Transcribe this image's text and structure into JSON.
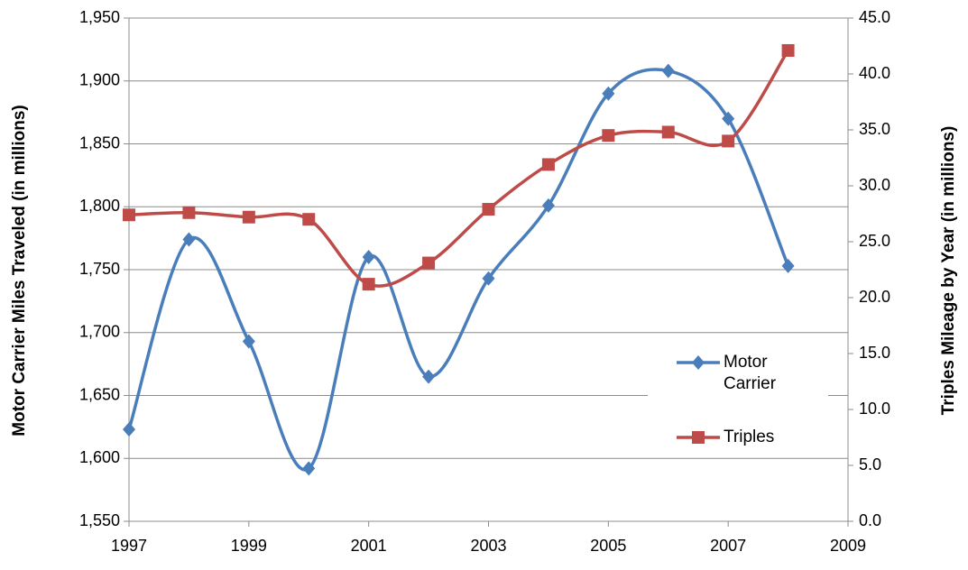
{
  "chart_data": {
    "type": "line",
    "y_label": "Motor Carrier Miles Traveled (in millions)",
    "y2_label": "Triples Mileage by Year (in millions)",
    "x": [
      1997,
      1998,
      1999,
      2000,
      2001,
      2002,
      2003,
      2004,
      2005,
      2006,
      2007,
      2008
    ],
    "xlim": [
      1997,
      2009
    ],
    "xticks": [
      1997,
      1999,
      2001,
      2003,
      2005,
      2007,
      2009
    ],
    "ylim": [
      1550,
      1950
    ],
    "yticks": [
      {
        "value": 1550,
        "label": "1,550"
      },
      {
        "value": 1600,
        "label": "1,600"
      },
      {
        "value": 1650,
        "label": "1,650"
      },
      {
        "value": 1700,
        "label": "1,700"
      },
      {
        "value": 1750,
        "label": "1,750"
      },
      {
        "value": 1800,
        "label": "1,800"
      },
      {
        "value": 1850,
        "label": "1,850"
      },
      {
        "value": 1900,
        "label": "1,900"
      },
      {
        "value": 1950,
        "label": "1,950"
      }
    ],
    "y2lim": [
      0,
      45
    ],
    "y2ticks": [
      {
        "value": 0,
        "label": "0.0"
      },
      {
        "value": 5,
        "label": "5.0"
      },
      {
        "value": 10,
        "label": "10.0"
      },
      {
        "value": 15,
        "label": "15.0"
      },
      {
        "value": 20,
        "label": "20.0"
      },
      {
        "value": 25,
        "label": "25.0"
      },
      {
        "value": 30,
        "label": "30.0"
      },
      {
        "value": 35,
        "label": "35.0"
      },
      {
        "value": 40,
        "label": "40.0"
      },
      {
        "value": 45,
        "label": "45.0"
      }
    ],
    "grid": true,
    "smooth": true,
    "legend": "right",
    "series": [
      {
        "name": "Motor Carrier",
        "color": "#4a7ebb",
        "marker": "diamond",
        "values": [
          1623,
          1774,
          1693,
          1592,
          1760,
          1665,
          1743,
          1801,
          1890,
          1908,
          1870,
          1753
        ]
      },
      {
        "name": "Triples",
        "color": "#be4b48",
        "marker": "square",
        "axis": "y2",
        "values": [
          27.4,
          27.6,
          27.2,
          27.0,
          21.2,
          23.1,
          27.9,
          31.9,
          34.5,
          34.8,
          34.0,
          42.1
        ]
      }
    ]
  }
}
